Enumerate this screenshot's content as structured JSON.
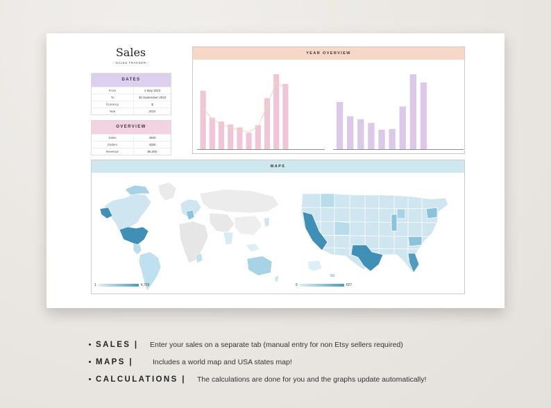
{
  "sheet": {
    "title": "Sales",
    "subtitle": "- SALES TRACKER -"
  },
  "dates": {
    "header": "DATES",
    "rows": [
      {
        "k": "From",
        "v": "1 May 2022"
      },
      {
        "k": "To",
        "v": "30 September 2022"
      },
      {
        "k": "Currency",
        "v": "$"
      },
      {
        "k": "Year",
        "v": "2022"
      }
    ]
  },
  "overview": {
    "header": "OVERVIEW",
    "rows": [
      {
        "k": "Sales",
        "v": "4500"
      },
      {
        "k": "Orders",
        "v": "4000"
      },
      {
        "k": "Revenue",
        "v": "$5,000"
      }
    ]
  },
  "year_overview": {
    "header": "YEAR OVERVIEW"
  },
  "maps": {
    "header": "MAPS",
    "world_legend": {
      "min": "1",
      "max": "4,703"
    },
    "usa_legend": {
      "min": "5",
      "max": "627"
    }
  },
  "features": [
    {
      "name": "SALES |",
      "desc": "Enter your sales on a separate tab (manual entry for non Etsy sellers required)"
    },
    {
      "name": "MAPS |",
      "desc": "Includes a world map and USA states map!"
    },
    {
      "name": "CALCULATIONS |",
      "desc": "The calculations are done for you and the graphs update automatically!"
    }
  ],
  "colors": {
    "dates_header": "#ddd0ef",
    "overview_header": "#f3d3e2",
    "year_header": "#f7d8c6",
    "maps_header": "#cfe7ef",
    "pink_bar": "#efc6d6",
    "pink_line": "#f1d7b8",
    "purple_bar": "#dcc9ea",
    "map_dark": "#3f8fb7",
    "map_light": "#dbeef6"
  },
  "chart_data": [
    {
      "type": "bar",
      "name": "",
      "values": [
        78,
        42,
        37,
        33,
        29,
        22,
        32,
        68,
        100,
        87
      ],
      "line": [
        55,
        40,
        33,
        29,
        25,
        23,
        30,
        58,
        90,
        80
      ]
    },
    {
      "type": "bar",
      "name": "",
      "values": [
        63,
        44,
        40,
        35,
        26,
        27,
        57,
        100,
        89
      ]
    }
  ]
}
